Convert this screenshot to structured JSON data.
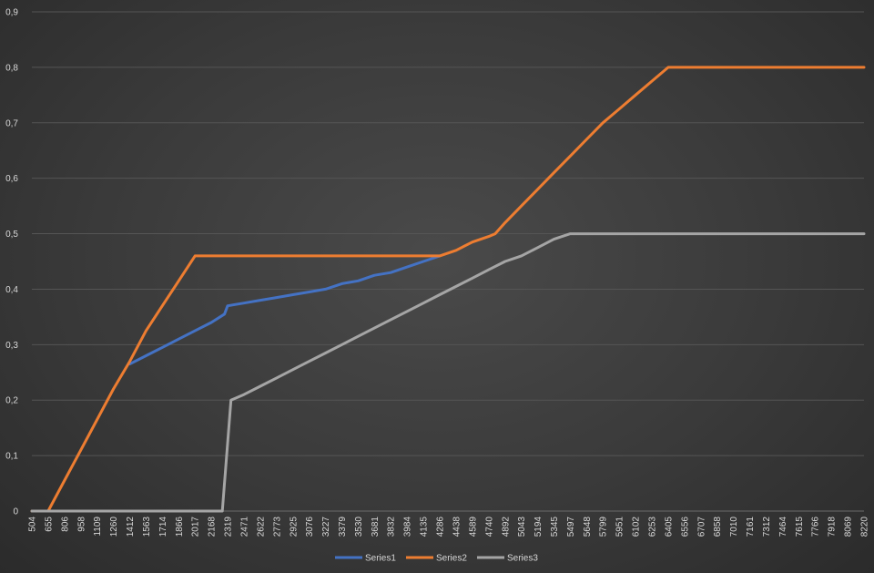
{
  "chart_data": {
    "type": "line",
    "title": "",
    "xlabel": "",
    "ylabel": "",
    "ylim": [
      0,
      0.9
    ],
    "grid": true,
    "legend_position": "bottom",
    "y_ticks": [
      "0",
      "0,1",
      "0,2",
      "0,3",
      "0,4",
      "0,5",
      "0,6",
      "0,7",
      "0,8",
      "0,9"
    ],
    "x_ticks": [
      "504",
      "655",
      "806",
      "958",
      "1109",
      "1260",
      "1412",
      "1563",
      "1714",
      "1866",
      "2017",
      "2168",
      "2319",
      "2471",
      "2622",
      "2773",
      "2925",
      "3076",
      "3227",
      "3379",
      "3530",
      "3681",
      "3832",
      "3984",
      "4135",
      "4286",
      "4438",
      "4589",
      "4740",
      "4892",
      "5043",
      "5194",
      "5345",
      "5497",
      "5648",
      "5799",
      "5951",
      "6102",
      "6253",
      "6405",
      "6556",
      "6707",
      "6858",
      "7010",
      "7161",
      "7312",
      "7464",
      "7615",
      "7766",
      "7918",
      "8069",
      "8220"
    ],
    "series": [
      {
        "name": "Series1",
        "color": "#4472c4",
        "x": [
          1412,
          1563,
          1714,
          1866,
          2017,
          2168,
          2290,
          2319,
          2471,
          2622,
          2773,
          2925,
          3076,
          3227,
          3379,
          3530,
          3681,
          3832,
          3984,
          4135,
          4286
        ],
        "y": [
          0.265,
          0.28,
          0.295,
          0.31,
          0.325,
          0.34,
          0.355,
          0.37,
          0.375,
          0.38,
          0.385,
          0.39,
          0.395,
          0.4,
          0.41,
          0.415,
          0.425,
          0.43,
          0.44,
          0.45,
          0.46
        ]
      },
      {
        "name": "Series2",
        "color": "#ed7d31",
        "x": [
          504,
          655,
          806,
          958,
          1109,
          1260,
          1412,
          1563,
          1714,
          1866,
          2017,
          2168,
          2319,
          2471,
          2622,
          2773,
          2925,
          3076,
          3227,
          3379,
          3530,
          3681,
          3832,
          3984,
          4135,
          4286,
          4438,
          4589,
          4740,
          4800,
          4892,
          5043,
          5194,
          5345,
          5497,
          5648,
          5799,
          5951,
          6102,
          6253,
          6405,
          6556,
          6650,
          6707,
          6858,
          7010,
          7161,
          7312,
          7464,
          7615,
          7766,
          7918,
          8069,
          8220
        ],
        "y": [
          0,
          0,
          0.055,
          0.11,
          0.165,
          0.22,
          0.27,
          0.325,
          0.37,
          0.415,
          0.46,
          0.46,
          0.46,
          0.46,
          0.46,
          0.46,
          0.46,
          0.46,
          0.46,
          0.46,
          0.46,
          0.46,
          0.46,
          0.46,
          0.46,
          0.46,
          0.47,
          0.485,
          0.495,
          0.5,
          0.52,
          0.55,
          0.58,
          0.61,
          0.64,
          0.67,
          0.7,
          0.725,
          0.75,
          0.775,
          0.8,
          0.8,
          0.8,
          0.8,
          0.8,
          0.8,
          0.8,
          0.8,
          0.8,
          0.8,
          0.8,
          0.8,
          0.8,
          0.8
        ]
      },
      {
        "name": "Series3",
        "color": "#a5a5a5",
        "x": [
          504,
          655,
          806,
          958,
          1109,
          1260,
          1412,
          1563,
          1714,
          1866,
          2017,
          2168,
          2270,
          2350,
          2471,
          2622,
          2773,
          2925,
          3076,
          3227,
          3379,
          3530,
          3681,
          3832,
          3984,
          4135,
          4286,
          4438,
          4589,
          4740,
          4892,
          5043,
          5194,
          5345,
          5497,
          5648,
          5799,
          5951,
          6102,
          6253,
          6405,
          6556,
          6707,
          6858,
          7010,
          7161,
          7312,
          7464,
          7615,
          7766,
          7918,
          8069,
          8220
        ],
        "y": [
          0,
          0,
          0,
          0,
          0,
          0,
          0,
          0,
          0,
          0,
          0,
          0,
          0,
          0.2,
          0.21,
          0.225,
          0.24,
          0.255,
          0.27,
          0.285,
          0.3,
          0.315,
          0.33,
          0.345,
          0.36,
          0.375,
          0.39,
          0.405,
          0.42,
          0.435,
          0.45,
          0.46,
          0.475,
          0.49,
          0.5,
          0.5,
          0.5,
          0.5,
          0.5,
          0.5,
          0.5,
          0.5,
          0.5,
          0.5,
          0.5,
          0.5,
          0.5,
          0.5,
          0.5,
          0.5,
          0.5,
          0.5,
          0.5
        ]
      }
    ]
  }
}
